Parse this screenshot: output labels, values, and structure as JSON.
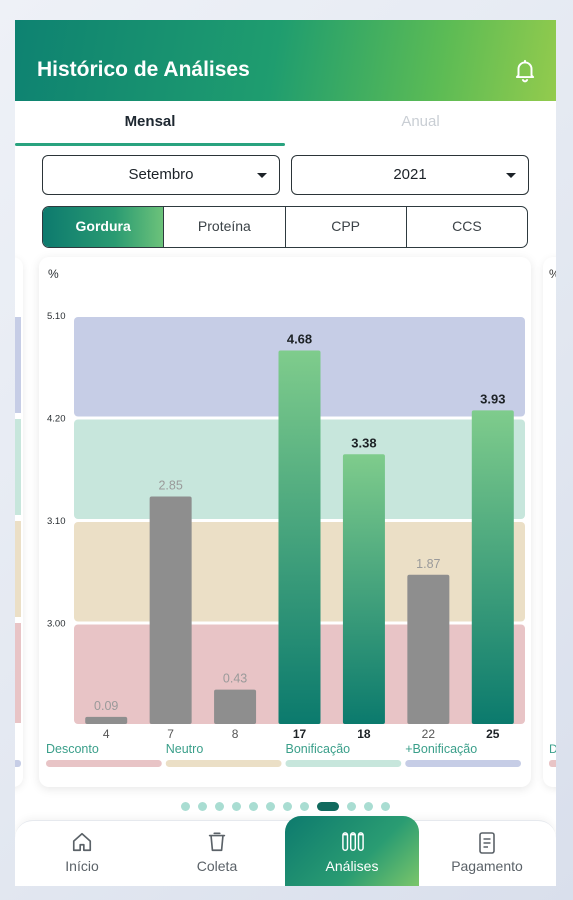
{
  "header": {
    "title": "Histórico de Análises",
    "icon": "bell-icon"
  },
  "tabs": [
    {
      "label": "Mensal",
      "active": true
    },
    {
      "label": "Anual",
      "active": false
    }
  ],
  "filters": {
    "month": "Setembro",
    "year": "2021"
  },
  "segments": [
    {
      "label": "Gordura",
      "active": true
    },
    {
      "label": "Proteína",
      "active": false
    },
    {
      "label": "CPP",
      "active": false
    },
    {
      "label": "CCS",
      "active": false
    }
  ],
  "chart_data": {
    "type": "bar",
    "ylabel": "%",
    "y_ticks": [
      "5.10",
      "4.20",
      "3.10",
      "3.00"
    ],
    "categories": [
      "4",
      "7",
      "8",
      "17",
      "18",
      "22",
      "25"
    ],
    "values": [
      0.09,
      2.85,
      0.43,
      4.68,
      3.38,
      1.87,
      3.93
    ],
    "value_labels": [
      "0.09",
      "2.85",
      "0.43",
      "4.68",
      "3.38",
      "1.87",
      "3.93"
    ],
    "highlighted": [
      false,
      false,
      false,
      true,
      true,
      false,
      true
    ],
    "bands": [
      {
        "label": "Desconto",
        "color": "#e8c4c6"
      },
      {
        "label": "Neutro",
        "color": "#ebdfc6"
      },
      {
        "label": "Bonificação",
        "color": "#c7e6dc"
      },
      {
        "label": "+Bonificação",
        "color": "#c6cde6"
      }
    ],
    "colors": {
      "neutral_bar": "#8e8e8e",
      "highlight_top": "#7fcc8c",
      "highlight_bottom": "#0b7a6d"
    }
  },
  "pager": {
    "count": 12,
    "active_index": 8
  },
  "nav": [
    {
      "label": "Início",
      "icon": "home-icon",
      "active": false
    },
    {
      "label": "Coleta",
      "icon": "bucket-icon",
      "active": false
    },
    {
      "label": "Análises",
      "icon": "test-tubes-icon",
      "active": true
    },
    {
      "label": "Pagamento",
      "icon": "receipt-icon",
      "active": false
    }
  ]
}
